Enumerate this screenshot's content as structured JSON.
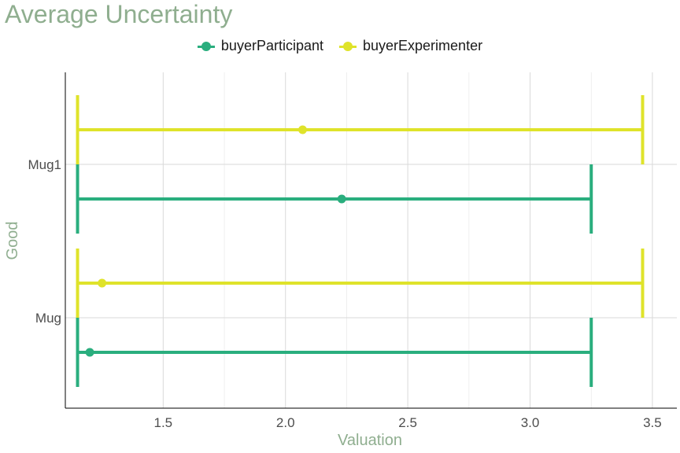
{
  "chart_data": {
    "type": "errorbar",
    "title": "Average Uncertainty",
    "xlabel": "Valuation",
    "ylabel": "Good",
    "xlim": [
      1.1,
      3.6
    ],
    "xticks": [
      "1.5",
      "2.0",
      "2.5",
      "3.0",
      "3.5"
    ],
    "categories": [
      "Mug",
      "Mug1"
    ],
    "grid": true,
    "legend_position": "top",
    "series": [
      {
        "name": "buyerParticipant",
        "color": "#2aae7e",
        "points": [
          {
            "category": "Mug",
            "value": 1.2,
            "low": 1.15,
            "high": 3.25
          },
          {
            "category": "Mug1",
            "value": 2.23,
            "low": 1.15,
            "high": 3.25
          }
        ]
      },
      {
        "name": "buyerExperimenter",
        "color": "#dfe32a",
        "points": [
          {
            "category": "Mug",
            "value": 1.25,
            "low": 1.15,
            "high": 3.46
          },
          {
            "category": "Mug1",
            "value": 2.07,
            "low": 1.15,
            "high": 3.46
          }
        ]
      }
    ]
  }
}
